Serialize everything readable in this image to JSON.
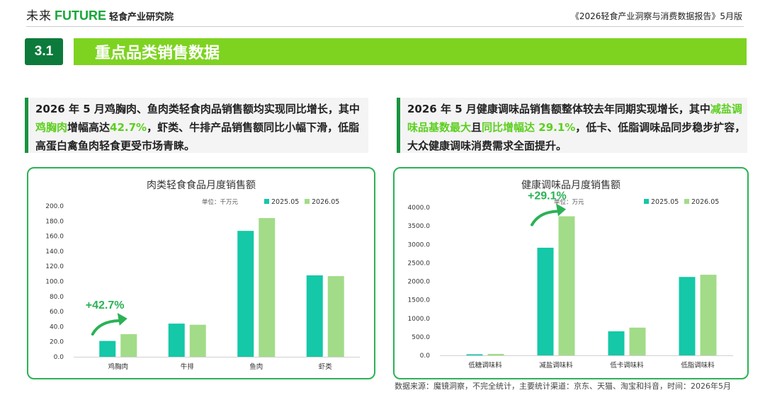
{
  "header": {
    "logo_cn": "未来",
    "logo_en": "FUTURE",
    "logo_cn2": "轻食产业研究院",
    "report_title": "《2026轻食产业洞察与消费数据报告》5月版"
  },
  "section": {
    "number": "3.1",
    "title": "重点品类销售数据"
  },
  "summary_left": {
    "t1": "2026 年 5 月鸡胸肉、鱼肉类轻食肉品销售额均实现同比增长，其中",
    "h1": "鸡胸肉",
    "t2": "增幅高达",
    "h2": "42.7%",
    "t3": "，虾类、牛排产品销售额同比小幅下滑，低脂高蛋白禽鱼肉轻食更受市场青睐。"
  },
  "summary_right": {
    "t1": "2026 年 5 月健康调味品销售额整体较去年同期实现增长，其中",
    "h1": "减盐调味品基数最大",
    "t2": "且",
    "h2": "同比增幅达 29.1%",
    "t3": "，低卡、低脂调味品同步稳步扩容，大众健康调味消费需求全面提升。"
  },
  "chart_data": [
    {
      "type": "bar",
      "title": "肉类轻食食品月度销售额",
      "unit": "单位：千万元",
      "categories": [
        "鸡胸肉",
        "牛排",
        "鱼肉",
        "虾类"
      ],
      "series": [
        {
          "name": "2025.05",
          "values": [
            21.0,
            44.0,
            167.0,
            108.0
          ]
        },
        {
          "name": "2026.05",
          "values": [
            30.0,
            42.5,
            184.0,
            107.0
          ]
        }
      ],
      "ylim": [
        0,
        200
      ],
      "yticks": [
        "0.0",
        "20.0",
        "40.0",
        "60.0",
        "80.0",
        "100.0",
        "120.0",
        "140.0",
        "160.0",
        "180.0",
        "200.0"
      ],
      "annotation": {
        "text": "+42.7%",
        "category": "鸡胸肉"
      },
      "legend": "top-right",
      "grid": false
    },
    {
      "type": "bar",
      "title": "健康调味品月度销售额",
      "unit": "单位：万元",
      "categories": [
        "低糖调味料",
        "减盐调味料",
        "低卡调味料",
        "低脂调味料"
      ],
      "series": [
        {
          "name": "2025.05",
          "values": [
            30.0,
            2910.0,
            650.0,
            2120.0
          ]
        },
        {
          "name": "2026.05",
          "values": [
            40.0,
            3760.0,
            750.0,
            2180.0
          ]
        }
      ],
      "ylim": [
        0,
        4000
      ],
      "yticks": [
        "0.0",
        "500.0",
        "1000.0",
        "1500.0",
        "2000.0",
        "2500.0",
        "3000.0",
        "3500.0",
        "4000.0"
      ],
      "annotation": {
        "text": "+29.1%",
        "category": "减盐调味料"
      },
      "legend": "top-right",
      "grid": false
    }
  ],
  "colors": {
    "series_2025": "#14c8a8",
    "series_2026": "#a2dc88",
    "accent": "#7ed321",
    "dark_green": "#0c7a3a",
    "annotation": "#2bb255"
  },
  "source": "数据来源：魔镜洞察，不完全统计，主要统计渠道：京东、天猫、淘宝和抖音，时间：2026年5月"
}
